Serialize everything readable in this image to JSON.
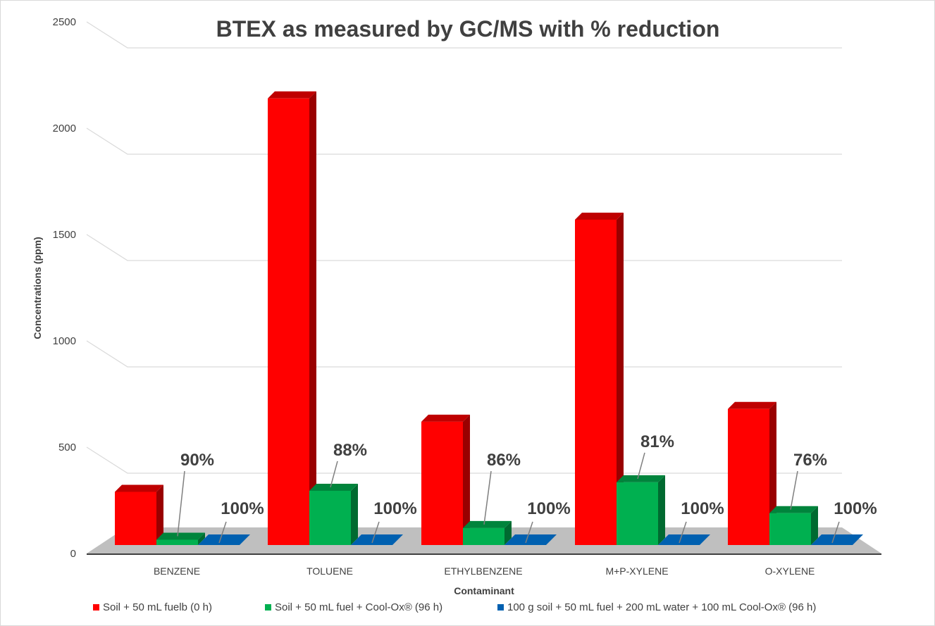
{
  "chart_data": {
    "type": "bar",
    "title": "BTEX as measured by GC/MS with % reduction",
    "xlabel": "Contaminant",
    "ylabel": "Concentrations (ppm)",
    "ylim": [
      0,
      2500
    ],
    "yticks": [
      "0",
      "500",
      "1000",
      "1500",
      "2000",
      "2500"
    ],
    "categories": [
      "BENZENE",
      "TOLUENE",
      "ETHYLBENZENE",
      "M+P-XYLENE",
      "O-XYLENE"
    ],
    "series": [
      {
        "name": "Soil + 50 mL fuelb (0 h)",
        "color": "#ff0000",
        "values": [
          250,
          2100,
          580,
          1530,
          640
        ]
      },
      {
        "name": "Soil + 50 mL fuel + Cool-Ox® (96 h)",
        "color": "#00b050",
        "values": [
          25,
          255,
          80,
          295,
          150
        ]
      },
      {
        "name": "100 g soil + 50 mL fuel + 200 mL water + 100 mL Cool-Ox® (96 h)",
        "color": "#0060b0",
        "values": [
          0,
          0,
          0,
          0,
          0
        ]
      }
    ],
    "annotations": {
      "green": [
        "90%",
        "88%",
        "86%",
        "81%",
        "76%"
      ],
      "blue": [
        "100%",
        "100%",
        "100%",
        "100%",
        "100%"
      ]
    },
    "grid": true,
    "legend_position": "bottom"
  }
}
